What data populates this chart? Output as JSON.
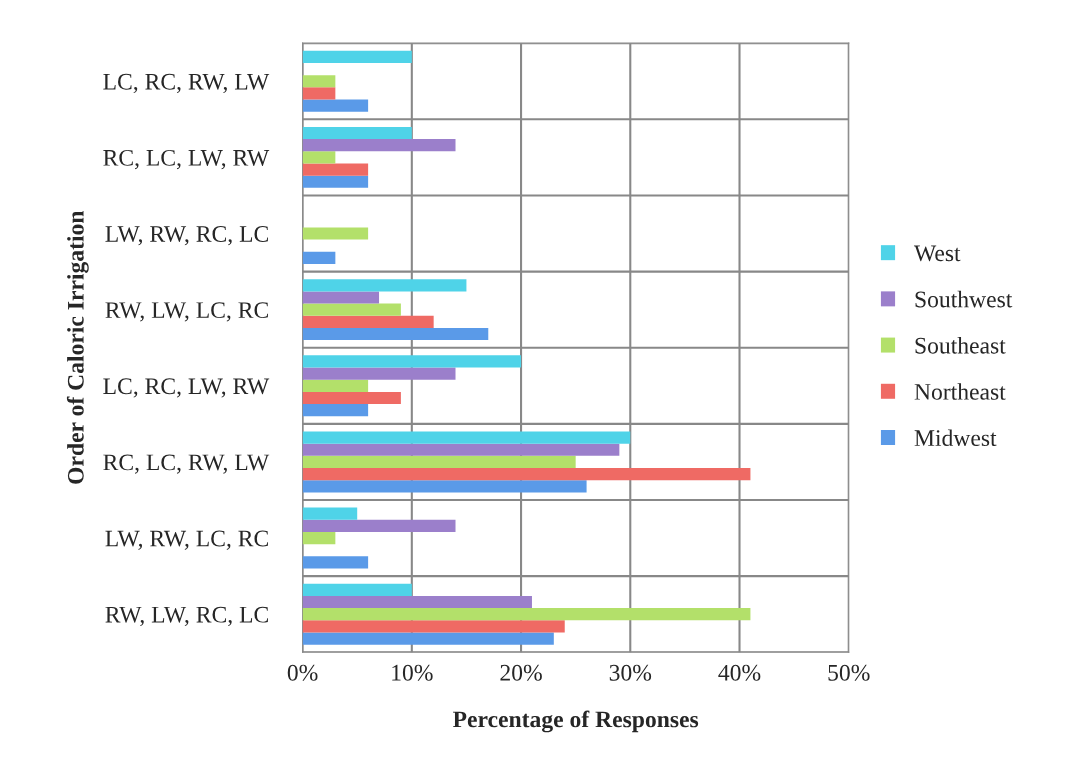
{
  "chart_data": {
    "type": "bar",
    "orientation": "horizontal",
    "xlabel": "Percentage of Responses",
    "ylabel": "Order of Caloric Irrigation",
    "categories": [
      "LC, RC, RW, LW",
      "RC, LC, LW, RW",
      "LW, RW, RC, LC",
      "RW, LW, LC, RC",
      "LC, RC, LW, RW",
      "RC, LC, RW, LW",
      "LW, RW, LC, RC",
      "RW, LW, RC, LC"
    ],
    "series": [
      {
        "name": "Midwest",
        "color": "#5a9ae8",
        "values": [
          6,
          6,
          3,
          17,
          6,
          26,
          6,
          23
        ]
      },
      {
        "name": "Northeast",
        "color": "#ef6a64",
        "values": [
          3,
          6,
          null,
          12,
          9,
          41,
          null,
          24
        ]
      },
      {
        "name": "Southeast",
        "color": "#b3e06a",
        "values": [
          3,
          3,
          6,
          9,
          6,
          25,
          3,
          41
        ]
      },
      {
        "name": "Southwest",
        "color": "#9b7fcb",
        "values": [
          null,
          14,
          null,
          7,
          14,
          29,
          14,
          21
        ]
      },
      {
        "name": "West",
        "color": "#4fd3e8",
        "values": [
          10,
          10,
          null,
          15,
          20,
          30,
          5,
          10
        ]
      }
    ],
    "xlim": [
      0,
      50
    ],
    "xticks": [
      {
        "value": 0,
        "label": "0%"
      },
      {
        "value": 10,
        "label": "10%"
      },
      {
        "value": 20,
        "label": "20%"
      },
      {
        "value": 30,
        "label": "30%"
      },
      {
        "value": 40,
        "label": "40%"
      },
      {
        "value": 50,
        "label": "50%"
      }
    ],
    "grid": true,
    "legend": "right"
  }
}
